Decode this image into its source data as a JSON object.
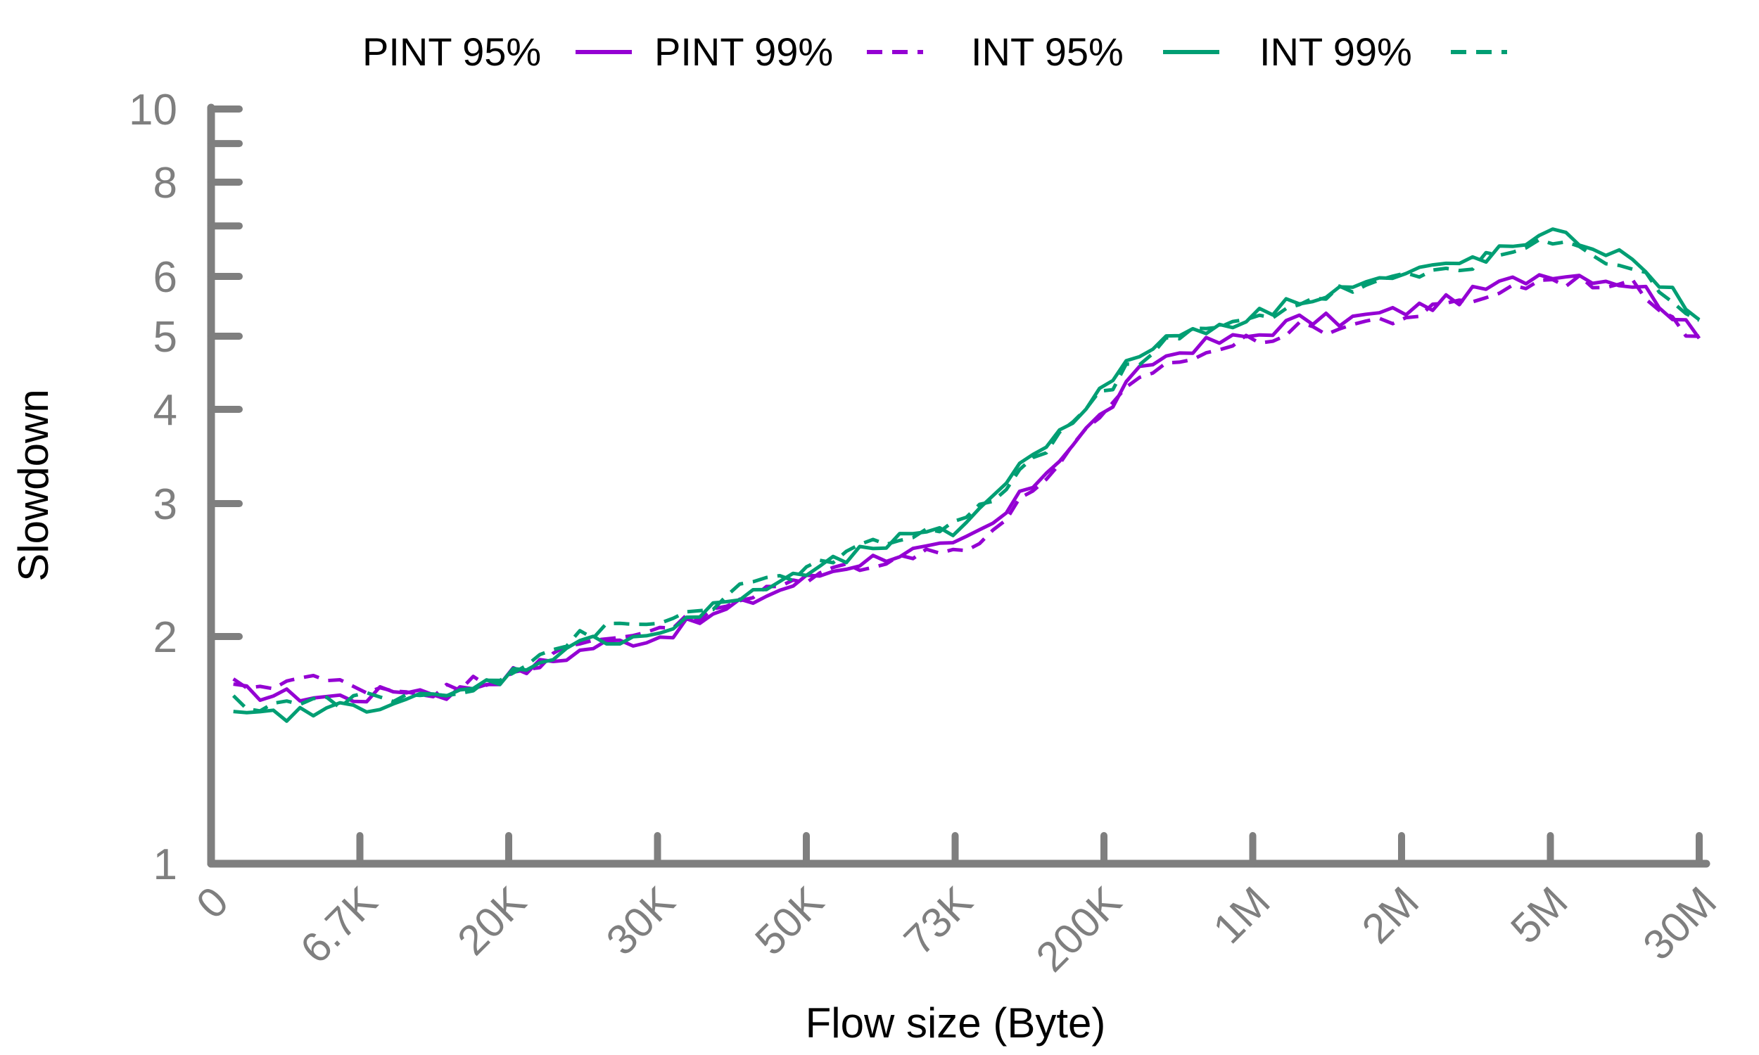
{
  "chart_data": {
    "type": "line",
    "xlabel": "Flow size (Byte)",
    "ylabel": "Slowdown",
    "y_scale": "log",
    "ylim": [
      1,
      10
    ],
    "yticks": [
      1,
      2,
      3,
      4,
      5,
      6,
      8,
      10
    ],
    "ytick_labels": [
      "1",
      "2",
      "3",
      "4",
      "5",
      "6",
      "8",
      "10"
    ],
    "yminor_ticks": [
      7,
      9
    ],
    "xtick_labels": [
      "0",
      "6.7K",
      "20K",
      "30K",
      "50K",
      "73K",
      "200K",
      "1M",
      "2M",
      "5M",
      "30M"
    ],
    "legend_position": "top",
    "grid": false,
    "colors": {
      "axis": "#7f7f7f",
      "pint": "#9400d3",
      "int": "#009e73"
    },
    "series": [
      {
        "name": "PINT 95%",
        "style": "solid",
        "color": "#9400d3",
        "anchors": [
          [
            0,
            1.72
          ],
          [
            0.3,
            1.68
          ],
          [
            0.6,
            1.67
          ],
          [
            1,
            1.66
          ],
          [
            1.3,
            1.71
          ],
          [
            1.6,
            1.68
          ],
          [
            2,
            1.78
          ],
          [
            2.3,
            1.86
          ],
          [
            2.6,
            1.95
          ],
          [
            3,
            2.0
          ],
          [
            3.3,
            2.1
          ],
          [
            3.6,
            2.22
          ],
          [
            4,
            2.38
          ],
          [
            4.3,
            2.5
          ],
          [
            4.6,
            2.58
          ],
          [
            5,
            2.62
          ],
          [
            5.3,
            2.85
          ],
          [
            5.6,
            3.3
          ],
          [
            6,
            3.95
          ],
          [
            6.3,
            4.6
          ],
          [
            6.6,
            4.85
          ],
          [
            7,
            5.0
          ],
          [
            7.3,
            5.25
          ],
          [
            7.6,
            5.25
          ],
          [
            8,
            5.4
          ],
          [
            8.3,
            5.55
          ],
          [
            8.6,
            5.8
          ],
          [
            9,
            6.1
          ],
          [
            9.3,
            6.0
          ],
          [
            9.6,
            5.85
          ],
          [
            10,
            4.95
          ]
        ]
      },
      {
        "name": "PINT 99%",
        "style": "dashed",
        "color": "#9400d3",
        "anchors": [
          [
            0,
            1.73
          ],
          [
            0.3,
            1.72
          ],
          [
            0.6,
            1.76
          ],
          [
            1,
            1.72
          ],
          [
            1.3,
            1.7
          ],
          [
            1.6,
            1.7
          ],
          [
            2,
            1.8
          ],
          [
            2.3,
            1.88
          ],
          [
            2.6,
            1.98
          ],
          [
            3,
            2.06
          ],
          [
            3.3,
            2.12
          ],
          [
            3.6,
            2.24
          ],
          [
            4,
            2.4
          ],
          [
            4.3,
            2.48
          ],
          [
            4.6,
            2.55
          ],
          [
            5,
            2.6
          ],
          [
            5.3,
            2.8
          ],
          [
            5.6,
            3.25
          ],
          [
            6,
            3.9
          ],
          [
            6.3,
            4.5
          ],
          [
            6.6,
            4.7
          ],
          [
            7,
            4.95
          ],
          [
            7.3,
            5.1
          ],
          [
            7.6,
            5.15
          ],
          [
            8,
            5.3
          ],
          [
            8.3,
            5.45
          ],
          [
            8.6,
            5.7
          ],
          [
            9,
            5.95
          ],
          [
            9.3,
            5.9
          ],
          [
            9.6,
            5.8
          ],
          [
            10,
            4.9
          ]
        ]
      },
      {
        "name": "INT 95%",
        "style": "solid",
        "color": "#009e73",
        "anchors": [
          [
            0,
            1.55
          ],
          [
            0.3,
            1.57
          ],
          [
            0.6,
            1.58
          ],
          [
            1,
            1.62
          ],
          [
            1.3,
            1.65
          ],
          [
            1.6,
            1.66
          ],
          [
            2,
            1.78
          ],
          [
            2.3,
            1.9
          ],
          [
            2.6,
            1.98
          ],
          [
            3,
            2.02
          ],
          [
            3.3,
            2.14
          ],
          [
            3.6,
            2.28
          ],
          [
            4,
            2.42
          ],
          [
            4.3,
            2.55
          ],
          [
            4.6,
            2.68
          ],
          [
            5,
            2.75
          ],
          [
            5.3,
            3.15
          ],
          [
            5.6,
            3.6
          ],
          [
            6,
            4.25
          ],
          [
            6.3,
            4.85
          ],
          [
            6.6,
            5.1
          ],
          [
            7,
            5.3
          ],
          [
            7.3,
            5.6
          ],
          [
            7.6,
            5.8
          ],
          [
            8,
            6.0
          ],
          [
            8.3,
            6.2
          ],
          [
            8.6,
            6.4
          ],
          [
            9,
            6.8
          ],
          [
            9.3,
            6.6
          ],
          [
            9.6,
            6.2
          ],
          [
            10,
            5.3
          ]
        ]
      },
      {
        "name": "INT 99%",
        "style": "dashed",
        "color": "#009e73",
        "anchors": [
          [
            0,
            1.65
          ],
          [
            0.3,
            1.62
          ],
          [
            0.6,
            1.64
          ],
          [
            1,
            1.65
          ],
          [
            1.3,
            1.66
          ],
          [
            1.6,
            1.68
          ],
          [
            2,
            1.8
          ],
          [
            2.3,
            1.93
          ],
          [
            2.6,
            2.04
          ],
          [
            3,
            2.08
          ],
          [
            3.3,
            2.18
          ],
          [
            3.6,
            2.32
          ],
          [
            4,
            2.45
          ],
          [
            4.3,
            2.58
          ],
          [
            4.6,
            2.7
          ],
          [
            5,
            2.78
          ],
          [
            5.3,
            3.1
          ],
          [
            5.6,
            3.55
          ],
          [
            6,
            4.2
          ],
          [
            6.3,
            4.8
          ],
          [
            6.6,
            5.05
          ],
          [
            7,
            5.25
          ],
          [
            7.3,
            5.55
          ],
          [
            7.6,
            5.75
          ],
          [
            8,
            5.95
          ],
          [
            8.3,
            6.15
          ],
          [
            8.6,
            6.35
          ],
          [
            9,
            6.65
          ],
          [
            9.3,
            6.45
          ],
          [
            9.6,
            6.1
          ],
          [
            10,
            5.2
          ]
        ]
      }
    ]
  }
}
